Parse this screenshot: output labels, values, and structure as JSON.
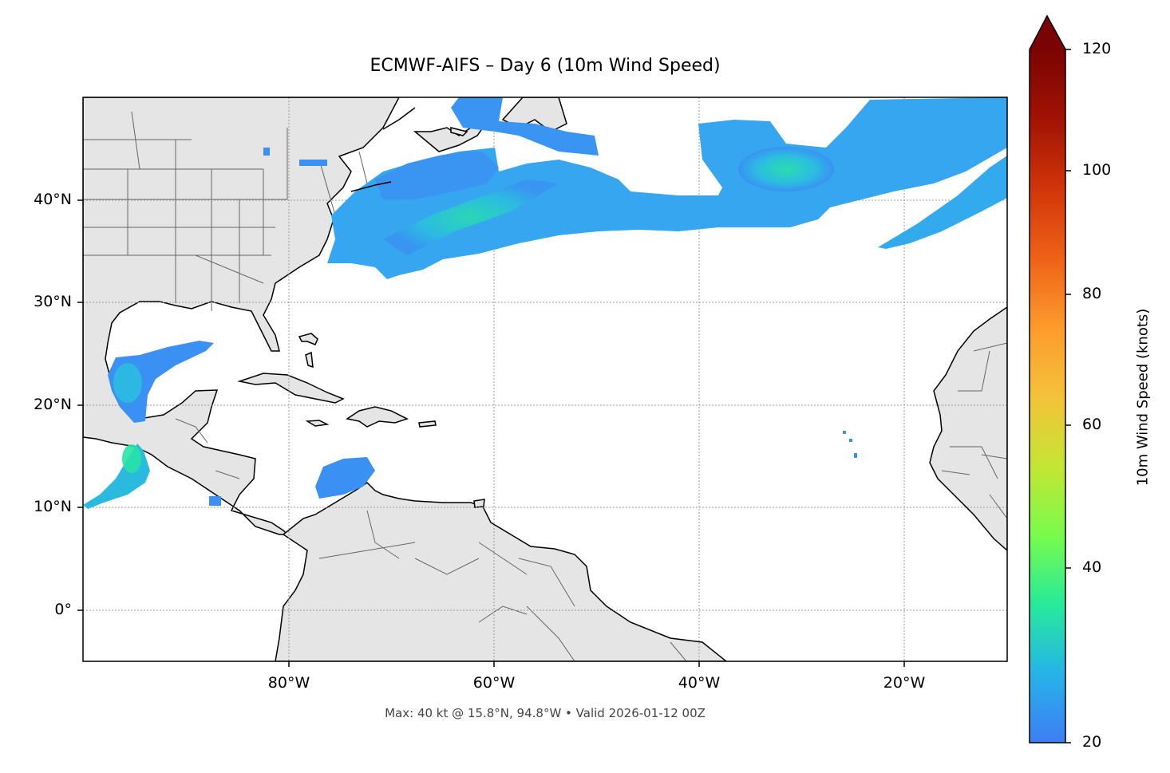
{
  "title": "ECMWF-AIFS – Day 6 (10m Wind Speed)",
  "footer": "Max: 40 kt @ 15.8°N, 94.8°W • Valid 2026-01-12 00Z",
  "map": {
    "extent": {
      "lon": [
        -100,
        -10
      ],
      "lat": [
        -5,
        50
      ]
    },
    "lat_ticks": [
      "40°N",
      "30°N",
      "20°N",
      "10°N",
      "0°"
    ],
    "lon_ticks": [
      "80°W",
      "60°W",
      "40°W",
      "20°W"
    ],
    "land_color": "#e5e5e5",
    "gridlines": true
  },
  "colorbar": {
    "label": "10m Wind Speed (knots)",
    "ticks": [
      "20",
      "40",
      "60",
      "80",
      "100",
      "120"
    ],
    "range": [
      20,
      120
    ],
    "extend": "max",
    "colormap": "turbo"
  },
  "wind_max": {
    "value_kt": 40,
    "lat": 15.8,
    "lon": -94.8
  }
}
